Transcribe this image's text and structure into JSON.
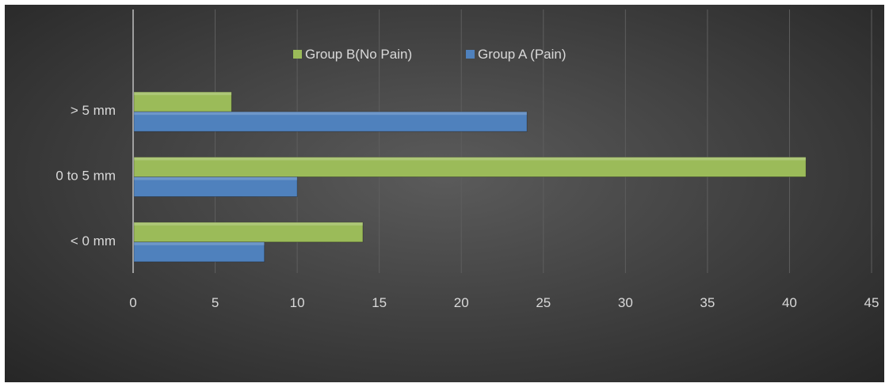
{
  "chart_data": {
    "type": "bar",
    "orientation": "horizontal",
    "categories": [
      "< 0 mm",
      "0 to 5 mm",
      "> 5 mm"
    ],
    "series": [
      {
        "name": "Group A (Pain)",
        "values": [
          8,
          10,
          24
        ],
        "color": "#4f81bd"
      },
      {
        "name": "Group B(No Pain)",
        "values": [
          14,
          41,
          6
        ],
        "color": "#9bbb59"
      }
    ],
    "legend_order": [
      1,
      0
    ],
    "xlim": [
      0,
      45
    ],
    "xticks": [
      "0",
      "5",
      "10",
      "15",
      "20",
      "25",
      "30",
      "35",
      "40",
      "45"
    ],
    "grid": true,
    "legend_position": "top"
  },
  "style": {
    "background": "#3f3f3f",
    "grid_color": "#5e5e5e",
    "axis_color": "#bfbfbf",
    "text_color": "#d9d9d9"
  }
}
